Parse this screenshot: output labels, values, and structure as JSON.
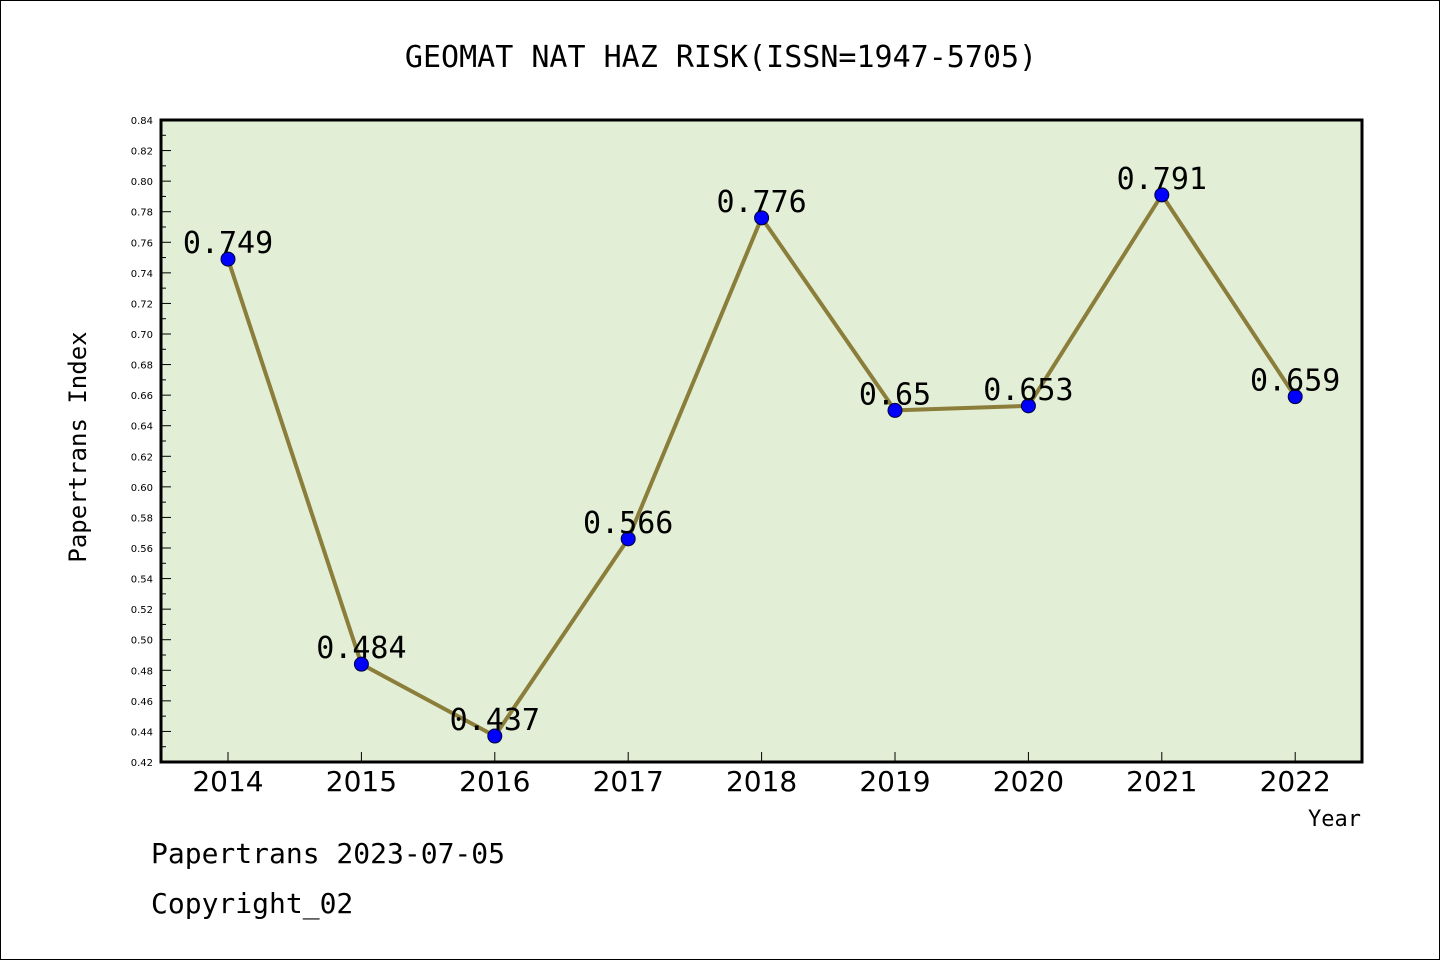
{
  "colors": {
    "plot_background": "#e2efd6",
    "line": "#8b7d3a",
    "marker": "#0000ff",
    "axis": "#000000"
  },
  "chart_data": {
    "type": "line",
    "title": "GEOMAT NAT HAZ RISK(ISSN=1947-5705)",
    "xlabel": "Year",
    "ylabel": "Papertrans Index",
    "categories": [
      "2014",
      "2015",
      "2016",
      "2017",
      "2018",
      "2019",
      "2020",
      "2021",
      "2022"
    ],
    "series": [
      {
        "values": [
          0.749,
          0.484,
          0.437,
          0.566,
          0.776,
          0.65,
          0.653,
          0.791,
          0.659
        ],
        "labels": [
          "0.749",
          "0.484",
          "0.437",
          "0.566",
          "0.776",
          "0.65",
          "0.653",
          "0.791",
          "0.659"
        ]
      }
    ],
    "ylim": [
      0.42,
      0.84
    ],
    "yticks": [
      "0.42",
      "0.44",
      "0.46",
      "0.48",
      "0.50",
      "0.52",
      "0.54",
      "0.56",
      "0.58",
      "0.60",
      "0.62",
      "0.64",
      "0.66",
      "0.68",
      "0.70",
      "0.72",
      "0.74",
      "0.76",
      "0.78",
      "0.80",
      "0.82",
      "0.84"
    ],
    "grid": false,
    "legend": "none"
  },
  "footer": {
    "line1": "Papertrans 2023-07-05",
    "line2": "Copyright_02"
  }
}
